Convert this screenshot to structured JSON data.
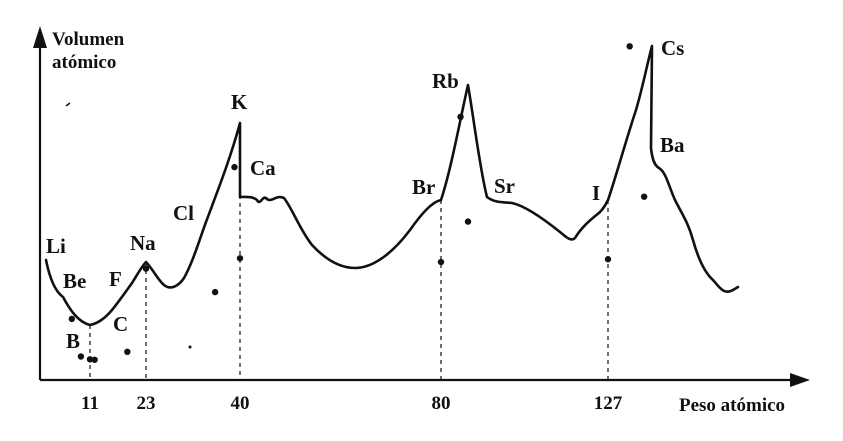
{
  "chart_data": {
    "type": "line",
    "title": "",
    "ylabel_line1": "Volumen",
    "ylabel_line2": "atómico",
    "xlabel": "Peso atómico",
    "x_ticks": [
      {
        "label": "11",
        "value": 11
      },
      {
        "label": "23",
        "value": 23
      },
      {
        "label": "40",
        "value": 40
      },
      {
        "label": "80",
        "value": 80
      },
      {
        "label": "127",
        "value": 127
      }
    ],
    "grid": false,
    "points": [
      {
        "label": "Li",
        "x": 7,
        "y": 13
      },
      {
        "label": "Be",
        "x": 9,
        "y": 5
      },
      {
        "label": "B",
        "x": 11,
        "y": 4.4
      },
      {
        "label": "C",
        "x": 12,
        "y": 4.3
      },
      {
        "label": "F",
        "x": 19,
        "y": 6
      },
      {
        "label": "Na",
        "x": 23,
        "y": 23.7
      },
      {
        "label": "Cl",
        "x": 35.5,
        "y": 18.7
      },
      {
        "label": "K",
        "x": 39,
        "y": 45.3
      },
      {
        "label": "Ca",
        "x": 40,
        "y": 25.9
      },
      {
        "label": "Br",
        "x": 80,
        "y": 25.1
      },
      {
        "label": "Rb",
        "x": 85.5,
        "y": 56.0
      },
      {
        "label": "Sr",
        "x": 87.6,
        "y": 33.7
      },
      {
        "label": "I",
        "x": 127,
        "y": 25.7
      },
      {
        "label": "Cs",
        "x": 133,
        "y": 71.0
      },
      {
        "label": "Ba",
        "x": 137,
        "y": 39.0
      }
    ]
  }
}
